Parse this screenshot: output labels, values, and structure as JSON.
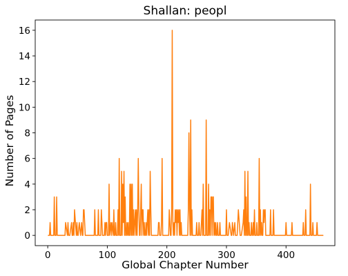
{
  "chart_data": {
    "type": "line",
    "title": "Shallan: peopl",
    "xlabel": "Global Chapter Number",
    "ylabel": "Number of Pages",
    "xlim": [
      -21,
      482
    ],
    "ylim": [
      -0.8,
      16.8
    ],
    "xticks": [
      0,
      100,
      200,
      300,
      400
    ],
    "yticks": [
      0,
      2,
      4,
      6,
      8,
      10,
      12,
      14,
      16
    ],
    "grid": false,
    "color": "#ff7f0e",
    "series": [
      {
        "x": [
          1,
          3,
          4,
          5,
          6,
          7,
          8,
          9,
          10,
          11,
          12,
          13,
          14,
          15,
          16,
          17,
          18,
          19,
          20,
          25,
          28,
          29,
          30,
          33,
          34,
          35,
          37,
          40,
          41,
          42,
          43,
          44,
          45,
          48,
          49,
          50,
          51,
          53,
          55,
          57,
          58,
          59,
          60,
          61,
          63,
          78,
          79,
          80,
          83,
          84,
          85,
          86,
          88,
          89,
          90,
          92,
          93,
          94,
          95,
          96,
          97,
          98,
          99,
          100,
          102,
          103,
          104,
          106,
          107,
          108,
          110,
          111,
          112,
          113,
          114,
          115,
          116,
          117,
          118,
          119,
          120,
          121,
          122,
          123,
          124,
          125,
          126,
          127,
          128,
          129,
          130,
          131,
          132,
          133,
          134,
          135,
          136,
          137,
          138,
          139,
          140,
          141,
          142,
          143,
          144,
          145,
          146,
          147,
          148,
          149,
          150,
          151,
          152,
          153,
          154,
          155,
          156,
          157,
          158,
          159,
          160,
          161,
          162,
          163,
          164,
          165,
          166,
          167,
          168,
          169,
          170,
          171,
          172,
          173,
          174,
          175,
          176,
          177,
          178,
          179,
          180,
          181,
          182,
          183,
          184,
          185,
          186,
          187,
          188,
          189,
          190,
          191,
          192,
          193,
          194,
          196,
          198,
          200,
          201,
          202,
          203,
          204,
          205,
          206,
          207,
          208,
          209,
          210,
          211,
          212,
          213,
          214,
          215,
          216,
          217,
          218,
          219,
          220,
          221,
          222,
          223,
          224,
          225,
          226,
          227,
          228,
          229,
          230,
          231,
          232,
          233,
          234,
          235,
          236,
          237,
          238,
          239,
          240,
          241,
          242,
          243,
          244,
          245,
          246,
          247,
          248,
          249,
          250,
          251,
          252,
          253,
          254,
          255,
          256,
          257,
          258,
          259,
          260,
          261,
          262,
          263,
          264,
          265,
          266,
          267,
          268,
          269,
          270,
          271,
          272,
          273,
          274,
          275,
          276,
          277,
          278,
          279,
          280,
          281,
          282,
          283,
          284,
          285,
          286,
          287,
          288,
          289,
          290,
          291,
          292,
          293,
          294,
          296,
          299,
          300,
          301,
          302,
          303,
          305,
          308,
          309,
          310,
          312,
          314,
          315,
          316,
          317,
          318,
          320,
          323,
          325,
          328,
          329,
          330,
          331,
          332,
          333,
          334,
          335,
          336,
          337,
          338,
          339,
          340,
          341,
          342,
          343,
          344,
          345,
          346,
          347,
          348,
          349,
          350,
          351,
          352,
          353,
          354,
          355,
          356,
          357,
          358,
          359,
          360,
          361,
          362,
          363,
          364,
          365,
          366,
          367,
          368,
          369,
          370,
          371,
          372,
          373,
          374,
          375,
          376,
          378,
          379,
          380,
          398,
          399,
          400,
          401,
          402,
          409,
          410,
          411,
          412,
          413,
          414,
          415,
          428,
          429,
          430,
          431,
          432,
          433,
          434,
          436,
          438,
          440,
          441,
          442,
          443,
          444,
          445,
          446,
          447,
          448,
          450,
          451,
          452,
          453,
          454,
          456,
          459,
          460,
          461,
          462
        ],
        "y": [
          0,
          0,
          1,
          0,
          0,
          0,
          0,
          0,
          0,
          3,
          0,
          0,
          0,
          3,
          0,
          0,
          0,
          0,
          0,
          0,
          0,
          0,
          1,
          0,
          1,
          0,
          0,
          1,
          0,
          0,
          1,
          0,
          2,
          0,
          1,
          0,
          0,
          1,
          0,
          1,
          0,
          0,
          2,
          2,
          0,
          0,
          2,
          0,
          0,
          0,
          2,
          0,
          0,
          0,
          2,
          0,
          0,
          0,
          0,
          1,
          0,
          1,
          1,
          0,
          0,
          4,
          0,
          1,
          0,
          1,
          0,
          2,
          0,
          0,
          1,
          0,
          0,
          0,
          2,
          0,
          6,
          0,
          0,
          0,
          5,
          0,
          4,
          1,
          5,
          0,
          3,
          0,
          0,
          1,
          0,
          1,
          0,
          0,
          4,
          0,
          4,
          0,
          4,
          0,
          2,
          0,
          1,
          2,
          0,
          2,
          0,
          2,
          6,
          2,
          0,
          0,
          2,
          4,
          0,
          2,
          2,
          0,
          1,
          0,
          0,
          1,
          0,
          1,
          2,
          0,
          2,
          0,
          5,
          2,
          0,
          0,
          0,
          0,
          0,
          0,
          0,
          0,
          0,
          0,
          0,
          0,
          1,
          1,
          0,
          0,
          0,
          1,
          6,
          0,
          0,
          0,
          0,
          0,
          0,
          0,
          0,
          2,
          1,
          0,
          0,
          2,
          16,
          1,
          0,
          1,
          0,
          2,
          1,
          2,
          0,
          2,
          1,
          2,
          0,
          2,
          0,
          1,
          0,
          0,
          0,
          0,
          0,
          0,
          0,
          0,
          0,
          0,
          0,
          2,
          8,
          2,
          0,
          9,
          0,
          2,
          0,
          0,
          0,
          0,
          0,
          0,
          0,
          1,
          0,
          0,
          0,
          1,
          0,
          0,
          0,
          1,
          2,
          0,
          4,
          0,
          0,
          0,
          0,
          9,
          0,
          0,
          0,
          4,
          0,
          2,
          0,
          3,
          3,
          0,
          3,
          3,
          0,
          1,
          0,
          1,
          0,
          0,
          1,
          0,
          0,
          0,
          1,
          0,
          0,
          0,
          0,
          0,
          0,
          0,
          2,
          0,
          0,
          0,
          1,
          0,
          0,
          1,
          0,
          1,
          0,
          0,
          0,
          0,
          2,
          0,
          0,
          1,
          2,
          0,
          5,
          0,
          3,
          0,
          0,
          5,
          0,
          1,
          0,
          0,
          0,
          1,
          0,
          0,
          1,
          0,
          2,
          0,
          0,
          0,
          1,
          0,
          0,
          0,
          6,
          0,
          2,
          0,
          1,
          0,
          0,
          2,
          1,
          2,
          2,
          0,
          0,
          0,
          0,
          0,
          0,
          0,
          0,
          2,
          0,
          0,
          0,
          2,
          0,
          0,
          0,
          1,
          0,
          0,
          0,
          1,
          0,
          0,
          0,
          0,
          0,
          0,
          1,
          0,
          0,
          0,
          2,
          0,
          0,
          0,
          0,
          4,
          0,
          0,
          0,
          1,
          0,
          0,
          0,
          0,
          0,
          1,
          0,
          0,
          0,
          0,
          0,
          0,
          0
        ]
      }
    ]
  }
}
